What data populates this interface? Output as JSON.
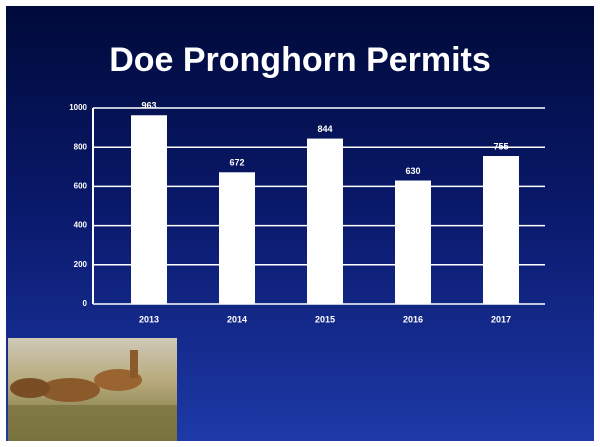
{
  "chart_data": {
    "type": "bar",
    "title": "Doe Pronghorn Permits",
    "categories": [
      "2013",
      "2014",
      "2015",
      "2016",
      "2017"
    ],
    "values": [
      963,
      672,
      844,
      630,
      755
    ],
    "color": "#ffffff",
    "ylim": [
      0,
      1000
    ],
    "yticks": [
      0,
      200,
      400,
      600,
      800,
      1000
    ],
    "grid": true
  }
}
